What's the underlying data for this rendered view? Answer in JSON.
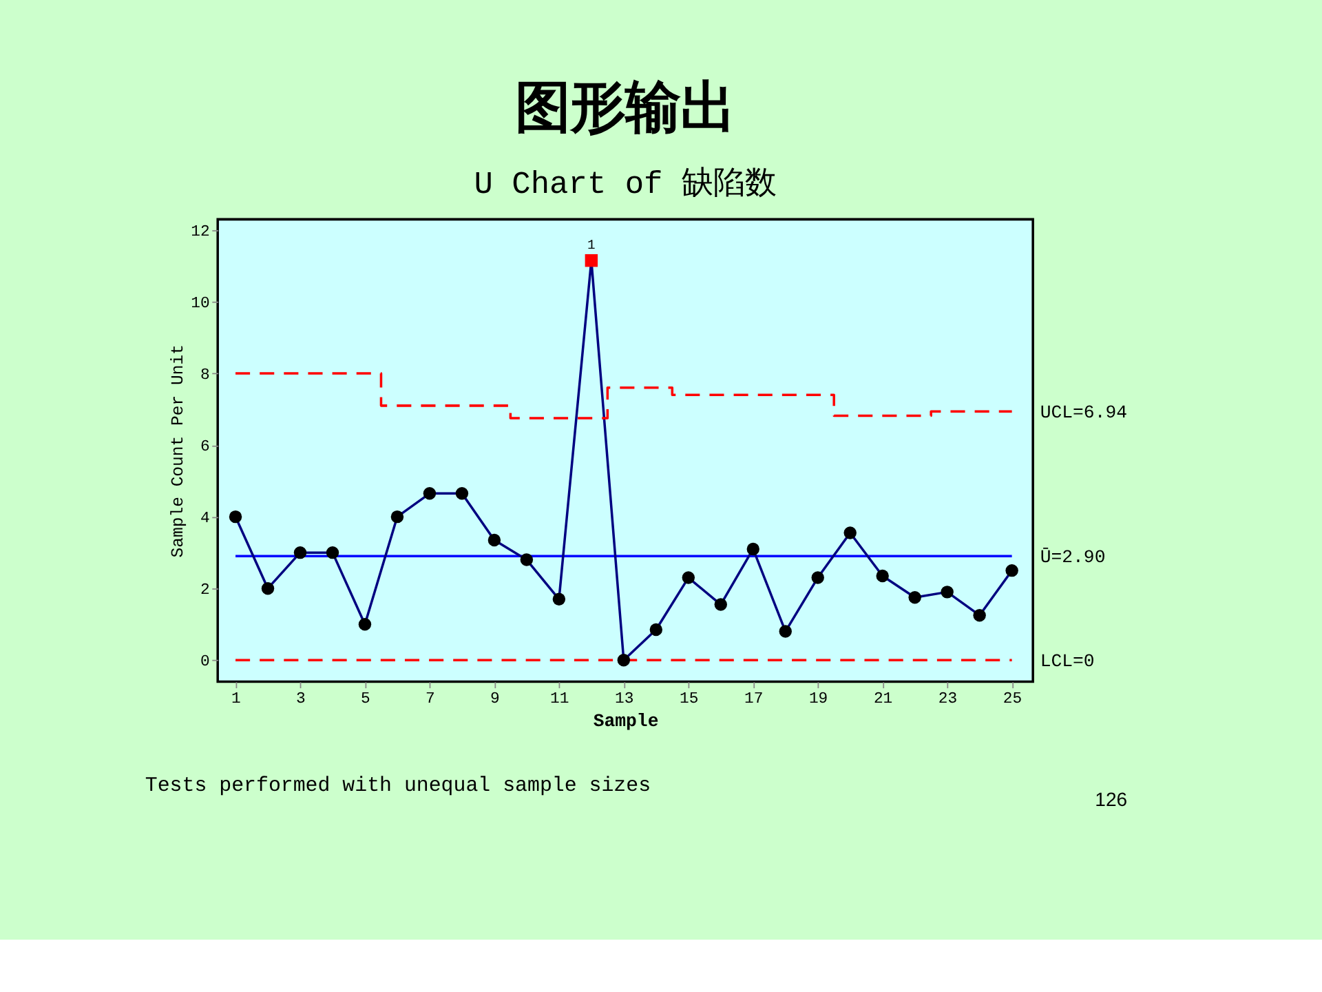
{
  "chart_data": {
    "type": "line",
    "title": "图形输出",
    "subtitle": "U Chart of 缺陷数",
    "xlabel": "Sample",
    "ylabel": "Sample Count Per Unit",
    "xlim": [
      0.45,
      25.65
    ],
    "xticks": [
      1,
      3,
      5,
      7,
      9,
      11,
      13,
      15,
      17,
      19,
      21,
      23,
      25
    ],
    "ylim": [
      -0.6,
      12.3
    ],
    "yticks": [
      0,
      2,
      4,
      6,
      8,
      10,
      12
    ],
    "grid": false,
    "series": [
      {
        "color": "#000080",
        "marker": "none",
        "x": [
          1,
          2,
          3,
          4,
          5,
          6,
          7,
          8,
          9,
          10,
          11,
          12,
          13,
          14,
          15,
          16,
          17,
          18,
          19,
          20,
          21,
          22,
          23,
          24,
          25
        ],
        "values": [
          4.0,
          2.0,
          3.0,
          3.0,
          1.0,
          4.0,
          4.65,
          4.65,
          3.35,
          2.8,
          1.7,
          11.15,
          0,
          0.85,
          2.3,
          1.55,
          3.1,
          0.8,
          2.3,
          3.55,
          2.35,
          1.75,
          1.9,
          1.25,
          2.5
        ]
      },
      {
        "type": "scatter",
        "color": "#000000",
        "marker": "circle",
        "x": [
          1,
          2,
          3,
          4,
          5,
          6,
          7,
          8,
          9,
          10,
          11,
          13,
          14,
          15,
          16,
          17,
          18,
          19,
          20,
          21,
          22,
          23,
          24,
          25
        ],
        "values": [
          4.0,
          2.0,
          3.0,
          3.0,
          1.0,
          4.0,
          4.65,
          4.65,
          3.35,
          2.8,
          1.7,
          0,
          0.85,
          2.3,
          1.55,
          3.1,
          0.8,
          2.3,
          3.55,
          2.35,
          1.75,
          1.9,
          1.25,
          2.5
        ]
      },
      {
        "type": "scatter",
        "color": "#ff0000",
        "marker": "square",
        "x": [
          12
        ],
        "values": [
          11.15
        ]
      },
      {
        "type": "step",
        "name": "UCL=6.94",
        "color": "#ff0000",
        "line_style": "dashed",
        "marker": "none",
        "x": [
          1,
          2,
          3,
          4,
          5,
          6,
          7,
          8,
          9,
          10,
          11,
          12,
          13,
          14,
          15,
          16,
          17,
          18,
          19,
          20,
          21,
          22,
          23,
          24,
          25
        ],
        "values": [
          8.0,
          8.0,
          8.0,
          8.0,
          8.0,
          7.1,
          7.1,
          7.1,
          7.1,
          6.75,
          6.75,
          6.75,
          7.6,
          7.6,
          7.4,
          7.4,
          7.4,
          7.4,
          7.4,
          6.82,
          6.82,
          6.82,
          6.94,
          6.94,
          6.94
        ]
      }
    ],
    "ref_lines": [
      {
        "axis": "y",
        "value": 2.9,
        "label": "Ū=2.90",
        "color": "#0000ff",
        "line_style": "solid"
      },
      {
        "axis": "y",
        "value": 0,
        "label": "LCL=0",
        "color": "#ff0000",
        "line_style": "dashed"
      }
    ],
    "annotations": [
      {
        "text": "1",
        "x": 12,
        "y": 11.15
      },
      "Tests performed with unequal sample sizes",
      "126"
    ]
  }
}
